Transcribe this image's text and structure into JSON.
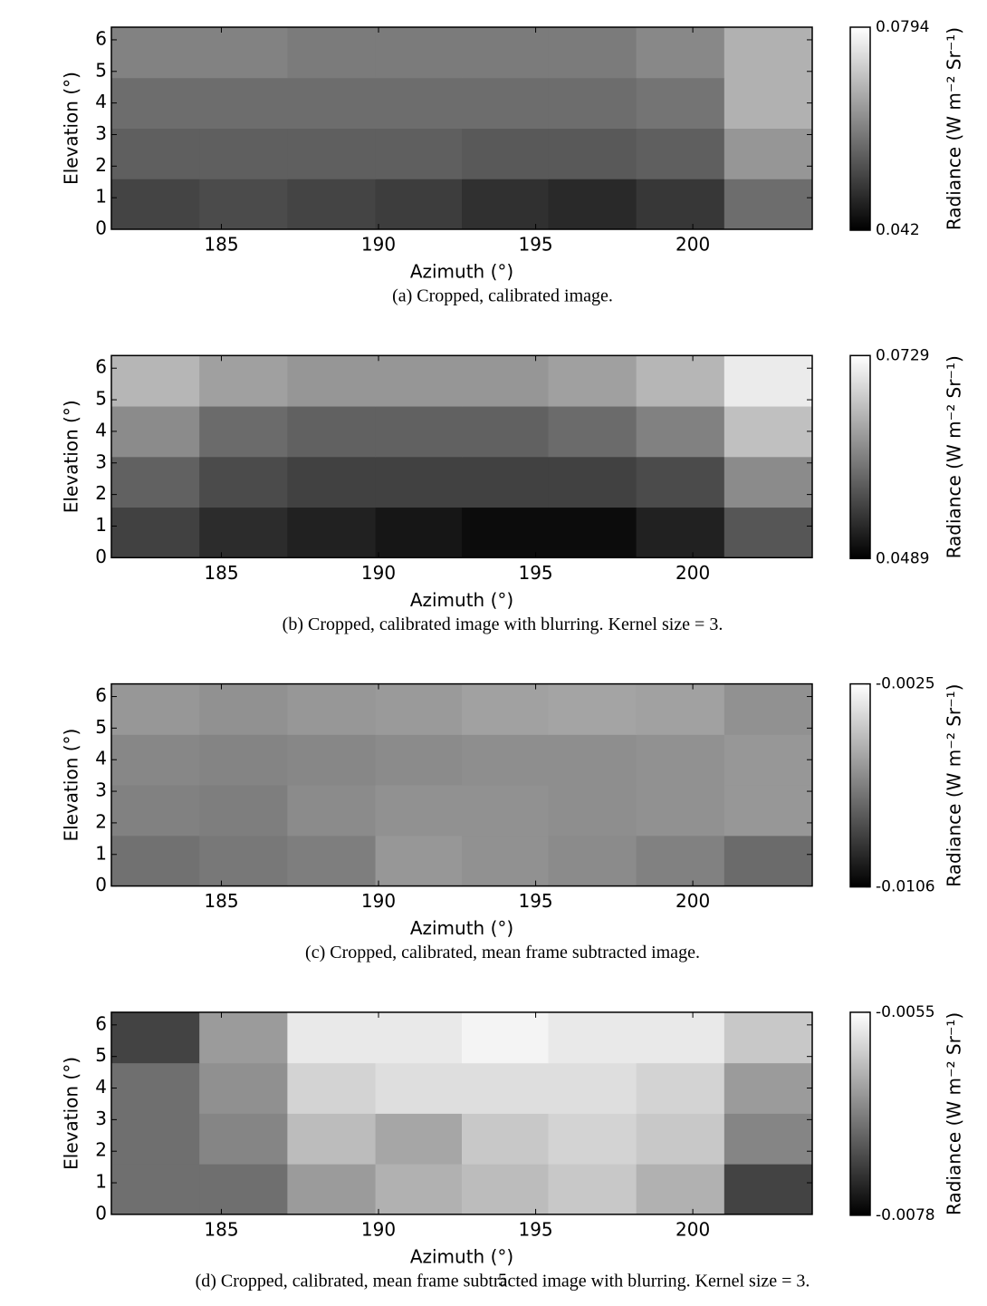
{
  "page_number": "5",
  "chart_data": [
    {
      "type": "heatmap",
      "caption": "(a) Cropped, calibrated image.",
      "xlabel": "Azimuth (°)",
      "ylabel": "Elevation (°)",
      "colorbar_label": "Radiance (W m⁻² Sr⁻¹)",
      "colormap": "gray",
      "xlim": [
        181.5,
        203.8
      ],
      "ylim": [
        0,
        6.4
      ],
      "xticks": [
        185,
        190,
        195,
        200
      ],
      "yticks": [
        0,
        1,
        2,
        3,
        4,
        5,
        6
      ],
      "clim": [
        0.042,
        0.0794
      ],
      "cticks": [
        0.0794,
        0.042
      ],
      "x": [
        182.9,
        185.7,
        188.5,
        191.3,
        194.0,
        196.8,
        199.6,
        202.4
      ],
      "y": [
        0.8,
        2.4,
        4.0,
        5.6
      ],
      "z": [
        [
          0.052,
          0.053,
          0.052,
          0.051,
          0.049,
          0.048,
          0.05,
          0.058
        ],
        [
          0.056,
          0.056,
          0.056,
          0.056,
          0.055,
          0.055,
          0.056,
          0.064
        ],
        [
          0.058,
          0.058,
          0.058,
          0.058,
          0.058,
          0.058,
          0.059,
          0.068
        ],
        [
          0.061,
          0.061,
          0.06,
          0.06,
          0.06,
          0.06,
          0.062,
          0.068
        ]
      ]
    },
    {
      "type": "heatmap",
      "caption": "(b) Cropped, calibrated image with blurring. Kernel size = 3.",
      "xlabel": "Azimuth (°)",
      "ylabel": "Elevation (°)",
      "colorbar_label": "Radiance (W m⁻² Sr⁻¹)",
      "colormap": "gray",
      "xlim": [
        181.5,
        203.8
      ],
      "ylim": [
        0,
        6.4
      ],
      "xticks": [
        185,
        190,
        195,
        200
      ],
      "yticks": [
        0,
        1,
        2,
        3,
        4,
        5,
        6
      ],
      "clim": [
        0.0489,
        0.0729
      ],
      "cticks": [
        0.0729,
        0.0489
      ],
      "x": [
        182.9,
        185.7,
        188.5,
        191.3,
        194.0,
        196.8,
        199.6,
        202.4
      ],
      "y": [
        0.8,
        2.4,
        4.0,
        5.6
      ],
      "z": [
        [
          0.055,
          0.053,
          0.052,
          0.051,
          0.05,
          0.05,
          0.052,
          0.057
        ],
        [
          0.058,
          0.056,
          0.055,
          0.055,
          0.055,
          0.055,
          0.056,
          0.062
        ],
        [
          0.062,
          0.059,
          0.058,
          0.058,
          0.058,
          0.059,
          0.061,
          0.067
        ],
        [
          0.066,
          0.064,
          0.063,
          0.063,
          0.063,
          0.064,
          0.066,
          0.071
        ]
      ]
    },
    {
      "type": "heatmap",
      "caption": "(c) Cropped, calibrated, mean frame subtracted image.",
      "xlabel": "Azimuth (°)",
      "ylabel": "Elevation (°)",
      "colorbar_label": "Radiance (W m⁻² Sr⁻¹)",
      "colormap": "gray",
      "xlim": [
        181.5,
        203.8
      ],
      "ylim": [
        0,
        6.4
      ],
      "xticks": [
        185,
        190,
        195,
        200
      ],
      "yticks": [
        0,
        1,
        2,
        3,
        4,
        5,
        6
      ],
      "clim": [
        -0.0106,
        -0.0025
      ],
      "cticks": [
        -0.0025,
        -0.0106
      ],
      "x": [
        182.9,
        185.7,
        188.5,
        191.3,
        194.0,
        196.8,
        199.6,
        202.4
      ],
      "y": [
        0.8,
        2.4,
        4.0,
        5.6
      ],
      "z": [
        [
          -0.007,
          -0.0068,
          -0.0066,
          -0.0058,
          -0.006,
          -0.0062,
          -0.0065,
          -0.0072
        ],
        [
          -0.0065,
          -0.0066,
          -0.0062,
          -0.006,
          -0.006,
          -0.0061,
          -0.006,
          -0.0058
        ],
        [
          -0.0063,
          -0.0064,
          -0.0063,
          -0.0062,
          -0.0061,
          -0.0061,
          -0.006,
          -0.0058
        ],
        [
          -0.0058,
          -0.006,
          -0.0058,
          -0.0057,
          -0.0055,
          -0.0054,
          -0.0055,
          -0.006
        ]
      ]
    },
    {
      "type": "heatmap",
      "caption": "(d) Cropped, calibrated, mean frame subtracted image with blurring. Kernel size = 3.",
      "xlabel": "Azimuth (°)",
      "ylabel": "Elevation (°)",
      "colorbar_label": "Radiance (W m⁻² Sr⁻¹)",
      "colormap": "gray",
      "xlim": [
        181.5,
        203.8
      ],
      "ylim": [
        0,
        6.4
      ],
      "xticks": [
        185,
        190,
        195,
        200
      ],
      "yticks": [
        0,
        1,
        2,
        3,
        4,
        5,
        6
      ],
      "clim": [
        -0.0078,
        -0.0055
      ],
      "cticks": [
        -0.0055,
        -0.0078
      ],
      "x": [
        182.9,
        185.7,
        188.5,
        191.3,
        194.0,
        196.8,
        199.6,
        202.4
      ],
      "y": [
        0.8,
        2.4,
        4.0,
        5.6
      ],
      "z": [
        [
          -0.0068,
          -0.0068,
          -0.0064,
          -0.0062,
          -0.0061,
          -0.006,
          -0.0062,
          -0.0072
        ],
        [
          -0.0068,
          -0.0066,
          -0.0061,
          -0.0063,
          -0.006,
          -0.0059,
          -0.006,
          -0.0066
        ],
        [
          -0.0068,
          -0.0065,
          -0.0059,
          -0.0058,
          -0.0058,
          -0.0058,
          -0.0059,
          -0.0064
        ],
        [
          -0.0072,
          -0.0064,
          -0.0057,
          -0.0057,
          -0.0056,
          -0.0057,
          -0.0057,
          -0.006
        ]
      ]
    }
  ]
}
